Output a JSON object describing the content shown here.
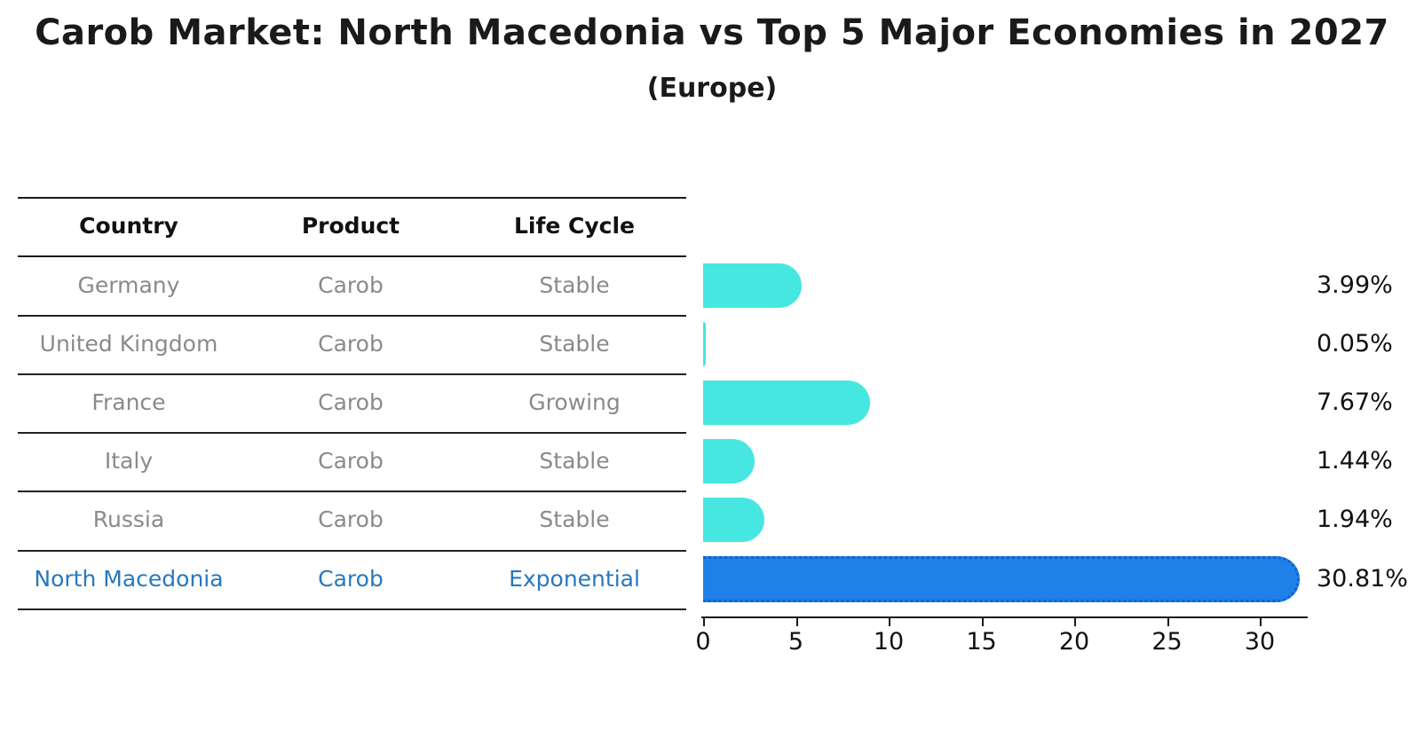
{
  "title": "Carob Market: North Macedonia vs Top 5 Major Economies in 2027",
  "subtitle": "(Europe)",
  "table": {
    "headers": [
      "Country",
      "Product",
      "Life Cycle"
    ],
    "rows": [
      {
        "country": "Germany",
        "product": "Carob",
        "life_cycle": "Stable",
        "highlighted": false
      },
      {
        "country": "United Kingdom",
        "product": "Carob",
        "life_cycle": "Stable",
        "highlighted": false
      },
      {
        "country": "France",
        "product": "Carob",
        "life_cycle": "Growing",
        "highlighted": false
      },
      {
        "country": "Italy",
        "product": "Carob",
        "life_cycle": "Stable",
        "highlighted": false
      },
      {
        "country": "Russia",
        "product": "Carob",
        "life_cycle": "Stable",
        "highlighted": false
      },
      {
        "country": "North Macedonia",
        "product": "Carob",
        "life_cycle": "Exponential",
        "highlighted": true
      }
    ]
  },
  "chart_data": {
    "type": "bar",
    "orientation": "horizontal",
    "title": "Carob Market: North Macedonia vs Top 5 Major Economies in 2027 (Europe)",
    "categories": [
      "Germany",
      "United Kingdom",
      "France",
      "Italy",
      "Russia",
      "North Macedonia"
    ],
    "values": [
      3.99,
      0.05,
      7.67,
      1.44,
      1.94,
      30.81
    ],
    "value_labels": [
      "3.99%",
      "0.05%",
      "7.67%",
      "1.44%",
      "1.94%",
      "30.81%"
    ],
    "x_ticks": [
      0,
      5,
      10,
      15,
      20,
      25,
      30
    ],
    "xlim": [
      0,
      32.5
    ],
    "grid": false,
    "legend": "none",
    "highlight_index": 5
  },
  "colors": {
    "bar_default": "#46e7e0",
    "bar_highlight": "#1e80e8",
    "bar_highlight_border": "#1261c9",
    "highlight_text": "#2878be",
    "row_text": "#8a8a8a",
    "axis": "#1a1a1a"
  }
}
